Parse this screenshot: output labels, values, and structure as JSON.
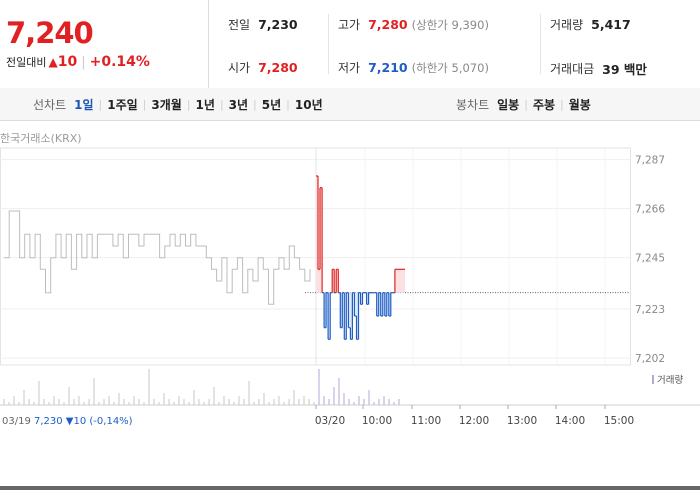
{
  "quote": {
    "price": "7,240",
    "change_label": "전일대비",
    "change_arrow": "▲",
    "change_value": "10",
    "change_pct": "+0.14%",
    "stats": {
      "prev_close": {
        "label": "전일",
        "value": "7,230"
      },
      "high": {
        "label": "고가",
        "value": "7,280",
        "limit_text": "(상한가 9,390)"
      },
      "volume": {
        "label": "거래량",
        "value": "5,417"
      },
      "open": {
        "label": "시가",
        "value": "7,280"
      },
      "low": {
        "label": "저가",
        "value": "7,210",
        "limit_text": "(하한가 5,070)"
      },
      "trade_value": {
        "label": "거래대금",
        "value": "39 백만"
      }
    },
    "colors": {
      "up": "#e12121",
      "down": "#1f5dc5",
      "active_tab": "#1a56b8"
    }
  },
  "toolbar": {
    "line_chart_label": "선차트",
    "line_periods": [
      "1일",
      "1주일",
      "3개월",
      "1년",
      "3년",
      "5년",
      "10년"
    ],
    "active_period": "1일",
    "candle_chart_label": "봉차트",
    "candle_periods": [
      "일봉",
      "주봉",
      "월봉"
    ]
  },
  "source_label": "한국거래소(KRX)",
  "volume_legend": "거래량",
  "prev_day_info": {
    "date": "03/19",
    "price": "7,230",
    "arrow": "▼",
    "change": "10",
    "pct": "(-0,14%)"
  },
  "chart_data": {
    "type": "line",
    "title": "",
    "ylabel": "",
    "xlabel": "",
    "y_ticks": [
      7287,
      7266,
      7245,
      7223,
      7202
    ],
    "y_tick_labels": [
      "7,287",
      "7,266",
      "7,245",
      "7,223",
      "7,202"
    ],
    "ylim": [
      7199,
      7292
    ],
    "reference_price": 7230,
    "x_tick_labels": [
      "03/20",
      "10:00",
      "11:00",
      "12:00",
      "13:00",
      "14:00",
      "15:00"
    ],
    "series": [
      {
        "label_date": "03/19",
        "x": [
          0,
          1,
          2,
          3,
          4,
          5,
          6,
          7,
          8,
          9,
          10,
          11,
          12,
          13,
          14,
          15,
          16,
          17,
          18,
          19,
          20,
          21,
          22,
          23,
          24,
          25,
          26,
          27,
          28,
          29,
          30,
          31,
          32,
          33,
          34,
          35,
          36,
          37,
          38,
          39,
          40,
          41,
          42,
          43,
          44,
          45,
          46,
          47,
          48,
          49,
          50,
          51,
          52,
          53,
          54,
          55,
          56,
          57,
          58,
          59
        ],
        "values": [
          7245,
          7265,
          7265,
          7245,
          7255,
          7245,
          7255,
          7240,
          7230,
          7245,
          7255,
          7245,
          7255,
          7240,
          7255,
          7245,
          7255,
          7245,
          7255,
          7255,
          7255,
          7250,
          7255,
          7245,
          7255,
          7255,
          7250,
          7255,
          7255,
          7255,
          7245,
          7250,
          7255,
          7250,
          7255,
          7250,
          7255,
          7250,
          7250,
          7245,
          7240,
          7235,
          7245,
          7230,
          7240,
          7245,
          7230,
          7240,
          7235,
          7245,
          7240,
          7225,
          7240,
          7245,
          7240,
          7250,
          7245,
          7240,
          7235,
          7240
        ]
      },
      {
        "label_date": "03/20",
        "x": [
          0,
          1,
          2,
          3,
          4,
          5,
          6,
          7,
          8,
          9,
          10,
          11,
          12,
          13,
          14,
          15,
          16,
          17,
          18,
          19,
          20,
          21,
          22,
          23,
          24,
          25,
          26,
          27,
          28,
          29,
          30,
          31,
          32,
          33,
          34,
          35,
          36,
          37,
          38,
          39,
          40,
          41,
          42,
          43,
          44
        ],
        "values": [
          7280,
          7240,
          7275,
          7230,
          7215,
          7230,
          7210,
          7230,
          7240,
          7230,
          7240,
          7230,
          7215,
          7230,
          7210,
          7230,
          7215,
          7210,
          7230,
          7220,
          7210,
          7230,
          7225,
          7230,
          7230,
          7225,
          7230,
          7230,
          7230,
          7230,
          7220,
          7230,
          7220,
          7230,
          7220,
          7230,
          7220,
          7230,
          7230,
          7240,
          7240,
          7240,
          7240,
          7240,
          7240
        ]
      }
    ],
    "volume_series_present": true
  }
}
